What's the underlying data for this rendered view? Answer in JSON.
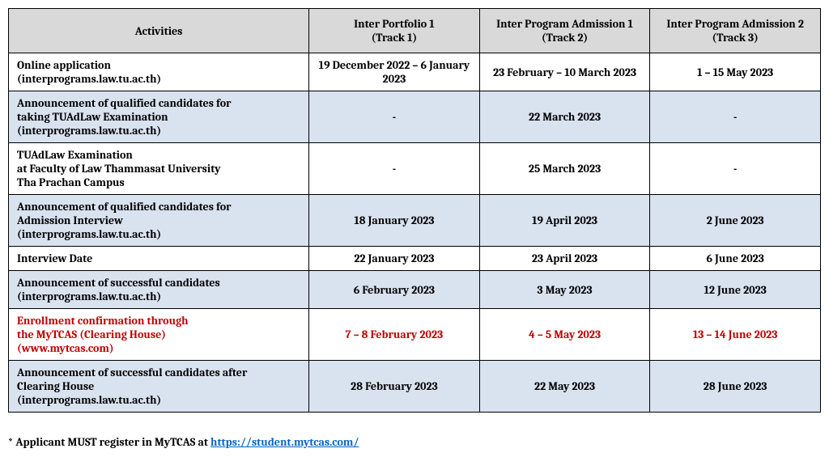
{
  "columns": [
    {
      "label": "Activities",
      "sub": ""
    },
    {
      "label": "Inter Portfolio 1",
      "sub": "(Track 1)"
    },
    {
      "label": "Inter Program Admission 1",
      "sub": "(Track 2)"
    },
    {
      "label": "Inter Program Admission 2",
      "sub": "(Track 3)"
    }
  ],
  "rows": [
    {
      "shaded": false,
      "red": false,
      "activity_l1": "Online application",
      "activity_l2": "(interprograms.law.tu.ac.th)",
      "activity_l3": "",
      "t1": "19 December 2022 – 6 January 2023",
      "t2": "23 February – 10 March 2023",
      "t3": "1 – 15 May 2023"
    },
    {
      "shaded": true,
      "red": false,
      "activity_l1": "Announcement of qualified candidates for",
      "activity_l2": "taking TUAdLaw Examination",
      "activity_l3": "(interprograms.law.tu.ac.th)",
      "t1": "-",
      "t2": "22 March 2023",
      "t3": "-"
    },
    {
      "shaded": false,
      "red": false,
      "activity_l1": "TUAdLaw Examination",
      "activity_l2": "at Faculty of Law Thammasat University",
      "activity_l3": "Tha Prachan Campus",
      "t1": "-",
      "t2": "25 March 2023",
      "t3": "-"
    },
    {
      "shaded": true,
      "red": false,
      "activity_l1": "Announcement of qualified candidates for",
      "activity_l2": "Admission Interview",
      "activity_l3": "(interprograms.law.tu.ac.th)",
      "t1": "18 January 2023",
      "t2": "19 April 2023",
      "t3": "2 June 2023"
    },
    {
      "shaded": false,
      "red": false,
      "activity_l1": "Interview Date",
      "activity_l2": "",
      "activity_l3": "",
      "t1": "22 January 2023",
      "t2": "23 April 2023",
      "t3": "6 June 2023"
    },
    {
      "shaded": true,
      "red": false,
      "activity_l1": "Announcement of successful candidates",
      "activity_l2": "(interprograms.law.tu.ac.th)",
      "activity_l3": "",
      "t1": "6 February 2023",
      "t2": "3 May 2023",
      "t3": "12 June 2023"
    },
    {
      "shaded": false,
      "red": true,
      "activity_l1": "Enrollment confirmation through",
      "activity_l2": "the MyTCAS (Clearing House)",
      "activity_l3": "(www.mytcas.com)",
      "t1": "7 – 8 February 2023",
      "t2": "4 – 5 May 2023",
      "t3": "13 – 14 June 2023"
    },
    {
      "shaded": true,
      "red": false,
      "activity_l1": "Announcement of successful candidates after",
      "activity_l2": "Clearing House",
      "activity_l3": "(interprograms.law.tu.ac.th)",
      "t1": "28 February 2023",
      "t2": "22 May 2023",
      "t3": "28 June 2023"
    }
  ],
  "footnote_prefix": "* Applicant MUST register in MyTCAS at ",
  "footnote_link_text": "https://student.mytcas.com/",
  "colors": {
    "header_bg": "#d9d9d9",
    "shaded_bg": "#d9e2ef",
    "red_text": "#c00000",
    "link": "#0563c1",
    "border": "#000000"
  },
  "font": {
    "family": "Cambria / serif",
    "size_pt": 11
  }
}
